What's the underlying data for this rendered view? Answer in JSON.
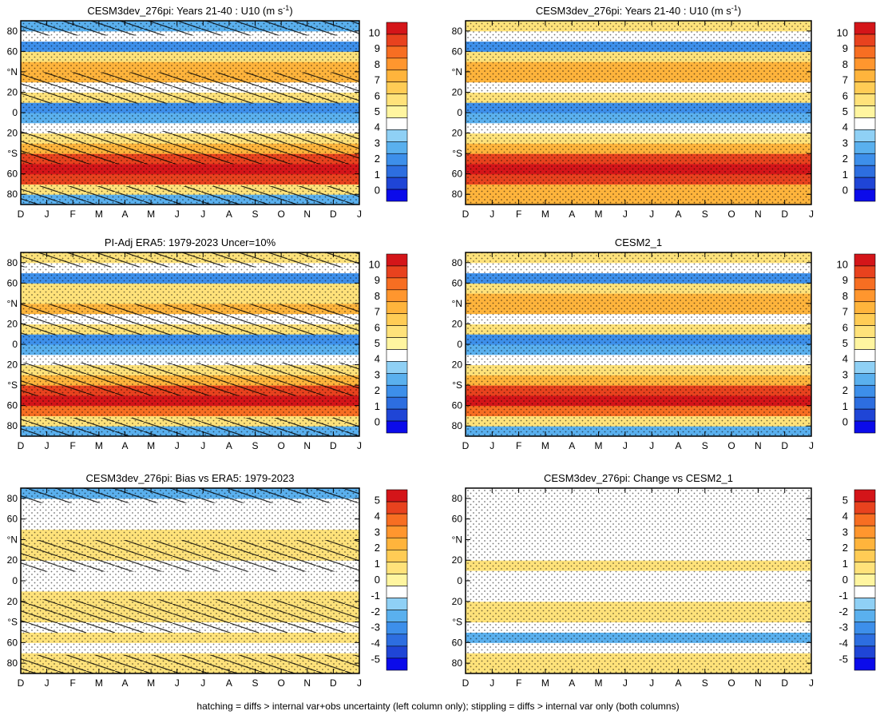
{
  "months": [
    "D",
    "J",
    "F",
    "M",
    "A",
    "M",
    "J",
    "J",
    "A",
    "S",
    "O",
    "N",
    "D",
    "J"
  ],
  "lat_ticks": [
    "80",
    "60",
    "°N",
    "20",
    "0",
    "20",
    "°S",
    "60",
    "80"
  ],
  "footer": "hatching = diffs > internal var+obs uncertainty (left column only); stippling = diffs > internal var only (both columns)",
  "colors": {
    "abs_scale": [
      "#0b0bea",
      "#1f45d6",
      "#2d6ee0",
      "#3d8fea",
      "#5ab0ee",
      "#8fd0f5",
      "#ffffff",
      "#fff5a0",
      "#ffe27a",
      "#ffcc55",
      "#ffb43c",
      "#ff962e",
      "#f76e22",
      "#e8421e",
      "#d41519"
    ],
    "bias_scale": [
      "#0b0bea",
      "#1f45d6",
      "#2d6ee0",
      "#3d8fea",
      "#5ab0ee",
      "#8fd0f5",
      "#ffffff",
      "#fff5a0",
      "#ffe27a",
      "#ffcc55",
      "#ffb43c",
      "#ff962e",
      "#f76e22",
      "#e8421e",
      "#d41519"
    ]
  },
  "chart_data": [
    {
      "type": "heatmap",
      "title": "CESM3dev_276pi: Years 21-40 : U10 (m s",
      "title_sup": "-1",
      "title_end": ")",
      "xlabel": "",
      "ylabel": "",
      "x_categories": [
        "D",
        "J",
        "F",
        "M",
        "A",
        "M",
        "J",
        "J",
        "A",
        "S",
        "O",
        "N",
        "D",
        "J"
      ],
      "y_range": [
        -90,
        90
      ],
      "colorbar_labels": [
        "10",
        "9",
        "8",
        "7",
        "6",
        "5",
        "4",
        "3",
        "2",
        "1",
        "0"
      ],
      "hatching": true,
      "stippling": true,
      "latitude_profile_ms": {
        "lat": [
          -85,
          -75,
          -65,
          -55,
          -45,
          -35,
          -25,
          -15,
          -5,
          5,
          15,
          25,
          35,
          45,
          55,
          65,
          75,
          85
        ],
        "values": [
          4,
          6,
          9,
          10,
          9,
          7,
          6,
          5,
          4,
          3,
          6,
          5,
          7,
          7,
          6,
          3,
          5,
          4
        ]
      }
    },
    {
      "type": "heatmap",
      "title": "CESM3dev_276pi: Years 21-40 : U10 (m s",
      "title_sup": "-1",
      "title_end": ")",
      "xlabel": "",
      "ylabel": "",
      "x_categories": [
        "D",
        "J",
        "F",
        "M",
        "A",
        "M",
        "J",
        "J",
        "A",
        "S",
        "O",
        "N",
        "D",
        "J"
      ],
      "y_range": [
        -90,
        90
      ],
      "colorbar_labels": [
        "10",
        "9",
        "8",
        "7",
        "6",
        "5",
        "4",
        "3",
        "2",
        "1",
        "0"
      ],
      "hatching": false,
      "stippling": true,
      "latitude_profile_ms": {
        "lat": [
          -85,
          -75,
          -65,
          -55,
          -45,
          -35,
          -25,
          -15,
          -5,
          5,
          15,
          25,
          35,
          45,
          55,
          65,
          75,
          85
        ],
        "values": [
          7,
          7,
          9,
          10,
          9,
          7,
          6,
          5,
          4,
          3,
          6,
          5,
          7,
          7,
          6,
          3,
          5,
          6
        ]
      }
    },
    {
      "type": "heatmap",
      "title": "PI-Adj ERA5: 1979-2023 Uncer=10%",
      "title_sup": "",
      "title_end": "",
      "xlabel": "",
      "ylabel": "",
      "x_categories": [
        "D",
        "J",
        "F",
        "M",
        "A",
        "M",
        "J",
        "J",
        "A",
        "S",
        "O",
        "N",
        "D",
        "J"
      ],
      "y_range": [
        -90,
        90
      ],
      "colorbar_labels": [
        "10",
        "9",
        "8",
        "7",
        "6",
        "5",
        "4",
        "3",
        "2",
        "1",
        "0"
      ],
      "hatching": true,
      "stippling": true,
      "latitude_profile_ms": {
        "lat": [
          -85,
          -75,
          -65,
          -55,
          -45,
          -35,
          -25,
          -15,
          -5,
          5,
          15,
          25,
          35,
          45,
          55,
          65,
          75,
          85
        ],
        "values": [
          4,
          6,
          8,
          10,
          9,
          7,
          6,
          5,
          4,
          3,
          6,
          5,
          7,
          6,
          6,
          3,
          5,
          6
        ]
      }
    },
    {
      "type": "heatmap",
      "title": "CESM2_1",
      "title_sup": "",
      "title_end": "",
      "xlabel": "",
      "ylabel": "",
      "x_categories": [
        "D",
        "J",
        "F",
        "M",
        "A",
        "M",
        "J",
        "J",
        "A",
        "S",
        "O",
        "N",
        "D",
        "J"
      ],
      "y_range": [
        -90,
        90
      ],
      "colorbar_labels": [
        "10",
        "9",
        "8",
        "7",
        "6",
        "5",
        "4",
        "3",
        "2",
        "1",
        "0"
      ],
      "hatching": false,
      "stippling": true,
      "latitude_profile_ms": {
        "lat": [
          -85,
          -75,
          -65,
          -55,
          -45,
          -35,
          -25,
          -15,
          -5,
          5,
          15,
          25,
          35,
          45,
          55,
          65,
          75,
          85
        ],
        "values": [
          4,
          6,
          8,
          10,
          9,
          7,
          6,
          5,
          4,
          3,
          6,
          5,
          7,
          7,
          6,
          3,
          5,
          6
        ]
      }
    },
    {
      "type": "heatmap",
      "title": "CESM3dev_276pi: Bias vs ERA5: 1979-2023",
      "title_sup": "",
      "title_end": "",
      "xlabel": "",
      "ylabel": "",
      "x_categories": [
        "D",
        "J",
        "F",
        "M",
        "A",
        "M",
        "J",
        "J",
        "A",
        "S",
        "O",
        "N",
        "D",
        "J"
      ],
      "y_range": [
        -90,
        90
      ],
      "colorbar_labels": [
        "5",
        "4",
        "3",
        "2",
        "1",
        "0",
        "-1",
        "-2",
        "-3",
        "-4",
        "-5"
      ],
      "hatching": true,
      "stippling": true,
      "latitude_profile_ms": {
        "lat": [
          -85,
          -75,
          -65,
          -55,
          -45,
          -35,
          -25,
          -15,
          -5,
          5,
          15,
          25,
          35,
          45,
          55,
          65,
          75,
          85
        ],
        "values": [
          1,
          1,
          0,
          1,
          0,
          1,
          1,
          1,
          0,
          0,
          0,
          1,
          1,
          1,
          0,
          0,
          0,
          -1
        ]
      }
    },
    {
      "type": "heatmap",
      "title": "CESM3dev_276pi: Change vs CESM2_1",
      "title_sup": "",
      "title_end": "",
      "xlabel": "",
      "ylabel": "",
      "x_categories": [
        "D",
        "J",
        "F",
        "M",
        "A",
        "M",
        "J",
        "J",
        "A",
        "S",
        "O",
        "N",
        "D",
        "J"
      ],
      "y_range": [
        -90,
        90
      ],
      "colorbar_labels": [
        "5",
        "4",
        "3",
        "2",
        "1",
        "0",
        "-1",
        "-2",
        "-3",
        "-4",
        "-5"
      ],
      "hatching": false,
      "stippling": true,
      "latitude_profile_ms": {
        "lat": [
          -85,
          -75,
          -65,
          -55,
          -45,
          -35,
          -25,
          -15,
          -5,
          5,
          15,
          25,
          35,
          45,
          55,
          65,
          75,
          85
        ],
        "values": [
          1,
          1,
          0,
          -1,
          0,
          1,
          1,
          0,
          0,
          0,
          1,
          0,
          0,
          0,
          0,
          0,
          0,
          0
        ]
      }
    }
  ]
}
